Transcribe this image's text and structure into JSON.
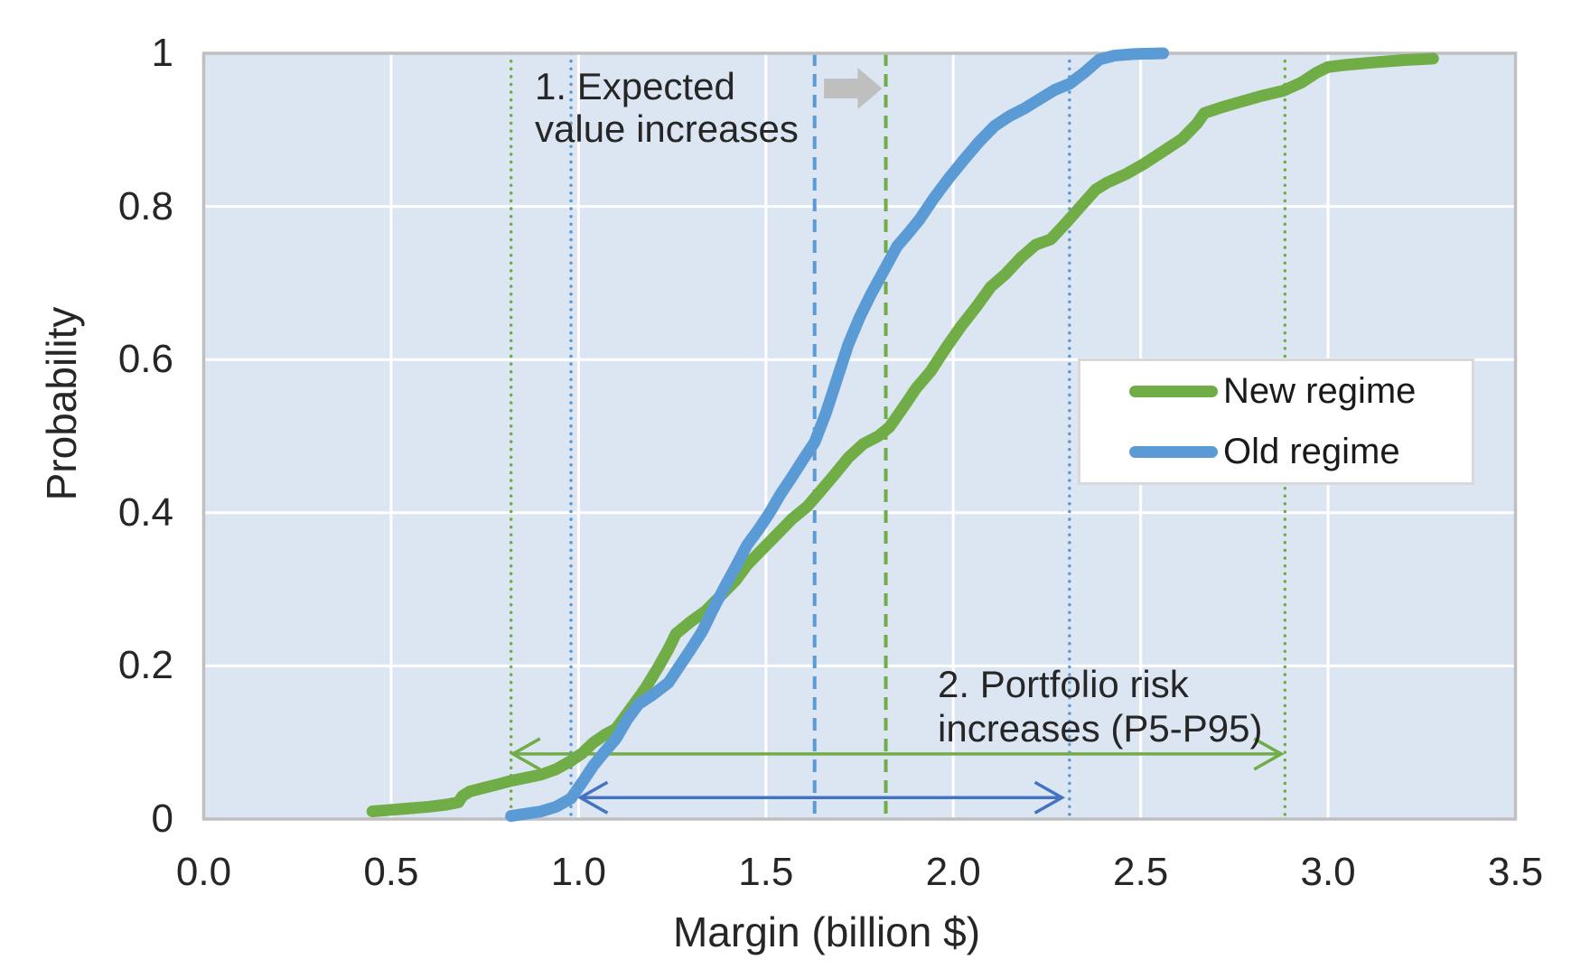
{
  "chart_data": {
    "type": "line",
    "subtype": "cumulative-distribution",
    "title": "",
    "xlabel": "Margin (billion $)",
    "ylabel": "Probability",
    "xlim": [
      0,
      3.5
    ],
    "ylim": [
      0,
      1
    ],
    "grid": true,
    "x_ticks": [
      "0.0",
      "0.5",
      "1.0",
      "1.5",
      "2.0",
      "2.5",
      "3.0",
      "3.5"
    ],
    "x_tick_values": [
      0,
      0.5,
      1,
      1.5,
      2,
      2.5,
      3,
      3.5
    ],
    "y_ticks": [
      "0",
      "0.2",
      "0.4",
      "0.6",
      "0.8",
      "1"
    ],
    "y_tick_values": [
      0,
      0.2,
      0.4,
      0.6,
      0.8,
      1
    ],
    "legend_position": "middle-right",
    "series": [
      {
        "name": "New regime",
        "color": "#70AD47",
        "points": [
          [
            0.45,
            0.01
          ],
          [
            0.5,
            0.012
          ],
          [
            0.55,
            0.014
          ],
          [
            0.6,
            0.016
          ],
          [
            0.65,
            0.019
          ],
          [
            0.68,
            0.022
          ],
          [
            0.69,
            0.03
          ],
          [
            0.71,
            0.036
          ],
          [
            0.75,
            0.041
          ],
          [
            0.79,
            0.046
          ],
          [
            0.82,
            0.05
          ],
          [
            0.86,
            0.054
          ],
          [
            0.9,
            0.058
          ],
          [
            0.94,
            0.065
          ],
          [
            0.98,
            0.076
          ],
          [
            1.01,
            0.086
          ],
          [
            1.04,
            0.1
          ],
          [
            1.07,
            0.11
          ],
          [
            1.1,
            0.118
          ],
          [
            1.13,
            0.138
          ],
          [
            1.16,
            0.158
          ],
          [
            1.18,
            0.172
          ],
          [
            1.21,
            0.196
          ],
          [
            1.24,
            0.222
          ],
          [
            1.26,
            0.242
          ],
          [
            1.3,
            0.258
          ],
          [
            1.34,
            0.272
          ],
          [
            1.38,
            0.292
          ],
          [
            1.42,
            0.312
          ],
          [
            1.45,
            0.332
          ],
          [
            1.49,
            0.352
          ],
          [
            1.53,
            0.372
          ],
          [
            1.57,
            0.392
          ],
          [
            1.61,
            0.408
          ],
          [
            1.64,
            0.425
          ],
          [
            1.68,
            0.448
          ],
          [
            1.72,
            0.472
          ],
          [
            1.76,
            0.49
          ],
          [
            1.8,
            0.5
          ],
          [
            1.83,
            0.512
          ],
          [
            1.87,
            0.54
          ],
          [
            1.9,
            0.562
          ],
          [
            1.94,
            0.585
          ],
          [
            1.98,
            0.615
          ],
          [
            2.02,
            0.643
          ],
          [
            2.06,
            0.668
          ],
          [
            2.1,
            0.695
          ],
          [
            2.14,
            0.712
          ],
          [
            2.18,
            0.733
          ],
          [
            2.22,
            0.75
          ],
          [
            2.26,
            0.757
          ],
          [
            2.3,
            0.778
          ],
          [
            2.34,
            0.8
          ],
          [
            2.38,
            0.822
          ],
          [
            2.41,
            0.831
          ],
          [
            2.46,
            0.842
          ],
          [
            2.51,
            0.856
          ],
          [
            2.56,
            0.872
          ],
          [
            2.61,
            0.888
          ],
          [
            2.65,
            0.908
          ],
          [
            2.67,
            0.922
          ],
          [
            2.72,
            0.93
          ],
          [
            2.77,
            0.937
          ],
          [
            2.82,
            0.944
          ],
          [
            2.88,
            0.951
          ],
          [
            2.93,
            0.962
          ],
          [
            2.97,
            0.975
          ],
          [
            3.0,
            0.982
          ],
          [
            3.05,
            0.985
          ],
          [
            3.12,
            0.988
          ],
          [
            3.2,
            0.991
          ],
          [
            3.28,
            0.993
          ]
        ]
      },
      {
        "name": "Old regime",
        "color": "#5B9BD5",
        "points": [
          [
            0.82,
            0.004
          ],
          [
            0.86,
            0.007
          ],
          [
            0.9,
            0.01
          ],
          [
            0.94,
            0.016
          ],
          [
            0.98,
            0.027
          ],
          [
            1.01,
            0.048
          ],
          [
            1.04,
            0.07
          ],
          [
            1.07,
            0.088
          ],
          [
            1.1,
            0.105
          ],
          [
            1.13,
            0.13
          ],
          [
            1.16,
            0.15
          ],
          [
            1.2,
            0.163
          ],
          [
            1.24,
            0.178
          ],
          [
            1.27,
            0.2
          ],
          [
            1.3,
            0.222
          ],
          [
            1.33,
            0.245
          ],
          [
            1.36,
            0.275
          ],
          [
            1.39,
            0.303
          ],
          [
            1.42,
            0.33
          ],
          [
            1.45,
            0.358
          ],
          [
            1.48,
            0.378
          ],
          [
            1.51,
            0.4
          ],
          [
            1.54,
            0.425
          ],
          [
            1.57,
            0.447
          ],
          [
            1.6,
            0.47
          ],
          [
            1.63,
            0.492
          ],
          [
            1.66,
            0.53
          ],
          [
            1.69,
            0.575
          ],
          [
            1.72,
            0.62
          ],
          [
            1.75,
            0.655
          ],
          [
            1.78,
            0.685
          ],
          [
            1.81,
            0.712
          ],
          [
            1.85,
            0.748
          ],
          [
            1.88,
            0.765
          ],
          [
            1.91,
            0.783
          ],
          [
            1.95,
            0.812
          ],
          [
            1.99,
            0.838
          ],
          [
            2.03,
            0.862
          ],
          [
            2.07,
            0.885
          ],
          [
            2.11,
            0.905
          ],
          [
            2.15,
            0.918
          ],
          [
            2.19,
            0.928
          ],
          [
            2.23,
            0.94
          ],
          [
            2.27,
            0.952
          ],
          [
            2.31,
            0.96
          ],
          [
            2.35,
            0.975
          ],
          [
            2.39,
            0.992
          ],
          [
            2.43,
            0.997
          ],
          [
            2.48,
            0.999
          ],
          [
            2.56,
            1.0
          ]
        ]
      }
    ],
    "reference_lines": [
      {
        "id": "new-regime-p5",
        "x": 0.82,
        "style": "dotted",
        "color": "#70AD47"
      },
      {
        "id": "old-regime-p5",
        "x": 0.98,
        "style": "dotted",
        "color": "#5B9BD5"
      },
      {
        "id": "old-regime-mean",
        "x": 1.63,
        "style": "dashed",
        "color": "#5B9BD5"
      },
      {
        "id": "new-regime-mean",
        "x": 1.82,
        "style": "dashed",
        "color": "#70AD47"
      },
      {
        "id": "old-regime-p95",
        "x": 2.31,
        "style": "dotted",
        "color": "#5B9BD5"
      },
      {
        "id": "new-regime-p95",
        "x": 2.885,
        "style": "dotted",
        "color": "#70AD47"
      }
    ],
    "range_arrows": [
      {
        "id": "new-regime-p5-p95",
        "from": 0.825,
        "to": 2.875,
        "p": 0.085,
        "color": "#70AD47"
      },
      {
        "id": "old-regime-p5-p95",
        "from": 1.005,
        "to": 2.29,
        "p": 0.028,
        "color": "#4472C4"
      }
    ],
    "shift_arrow": {
      "from": 1.655,
      "to": 1.81,
      "p": 0.954,
      "color": "#BFBFBF"
    },
    "annotations": [
      {
        "id": "expected-value-note",
        "lines": [
          "1. Expected",
          "value increases"
        ]
      },
      {
        "id": "portfolio-risk-note",
        "lines": [
          "2. Portfolio risk",
          "increases (P5-P95)"
        ]
      }
    ],
    "legend": {
      "items": [
        {
          "label": "New regime",
          "color": "#70AD47"
        },
        {
          "label": "Old regime",
          "color": "#5B9BD5"
        }
      ]
    }
  },
  "colors": {
    "plot_background": "#DCE6F2",
    "gridline": "#FFFFFF",
    "plot_border": "#BFBFBF",
    "text": "#262626",
    "legend_border": "#D9D9D9"
  }
}
